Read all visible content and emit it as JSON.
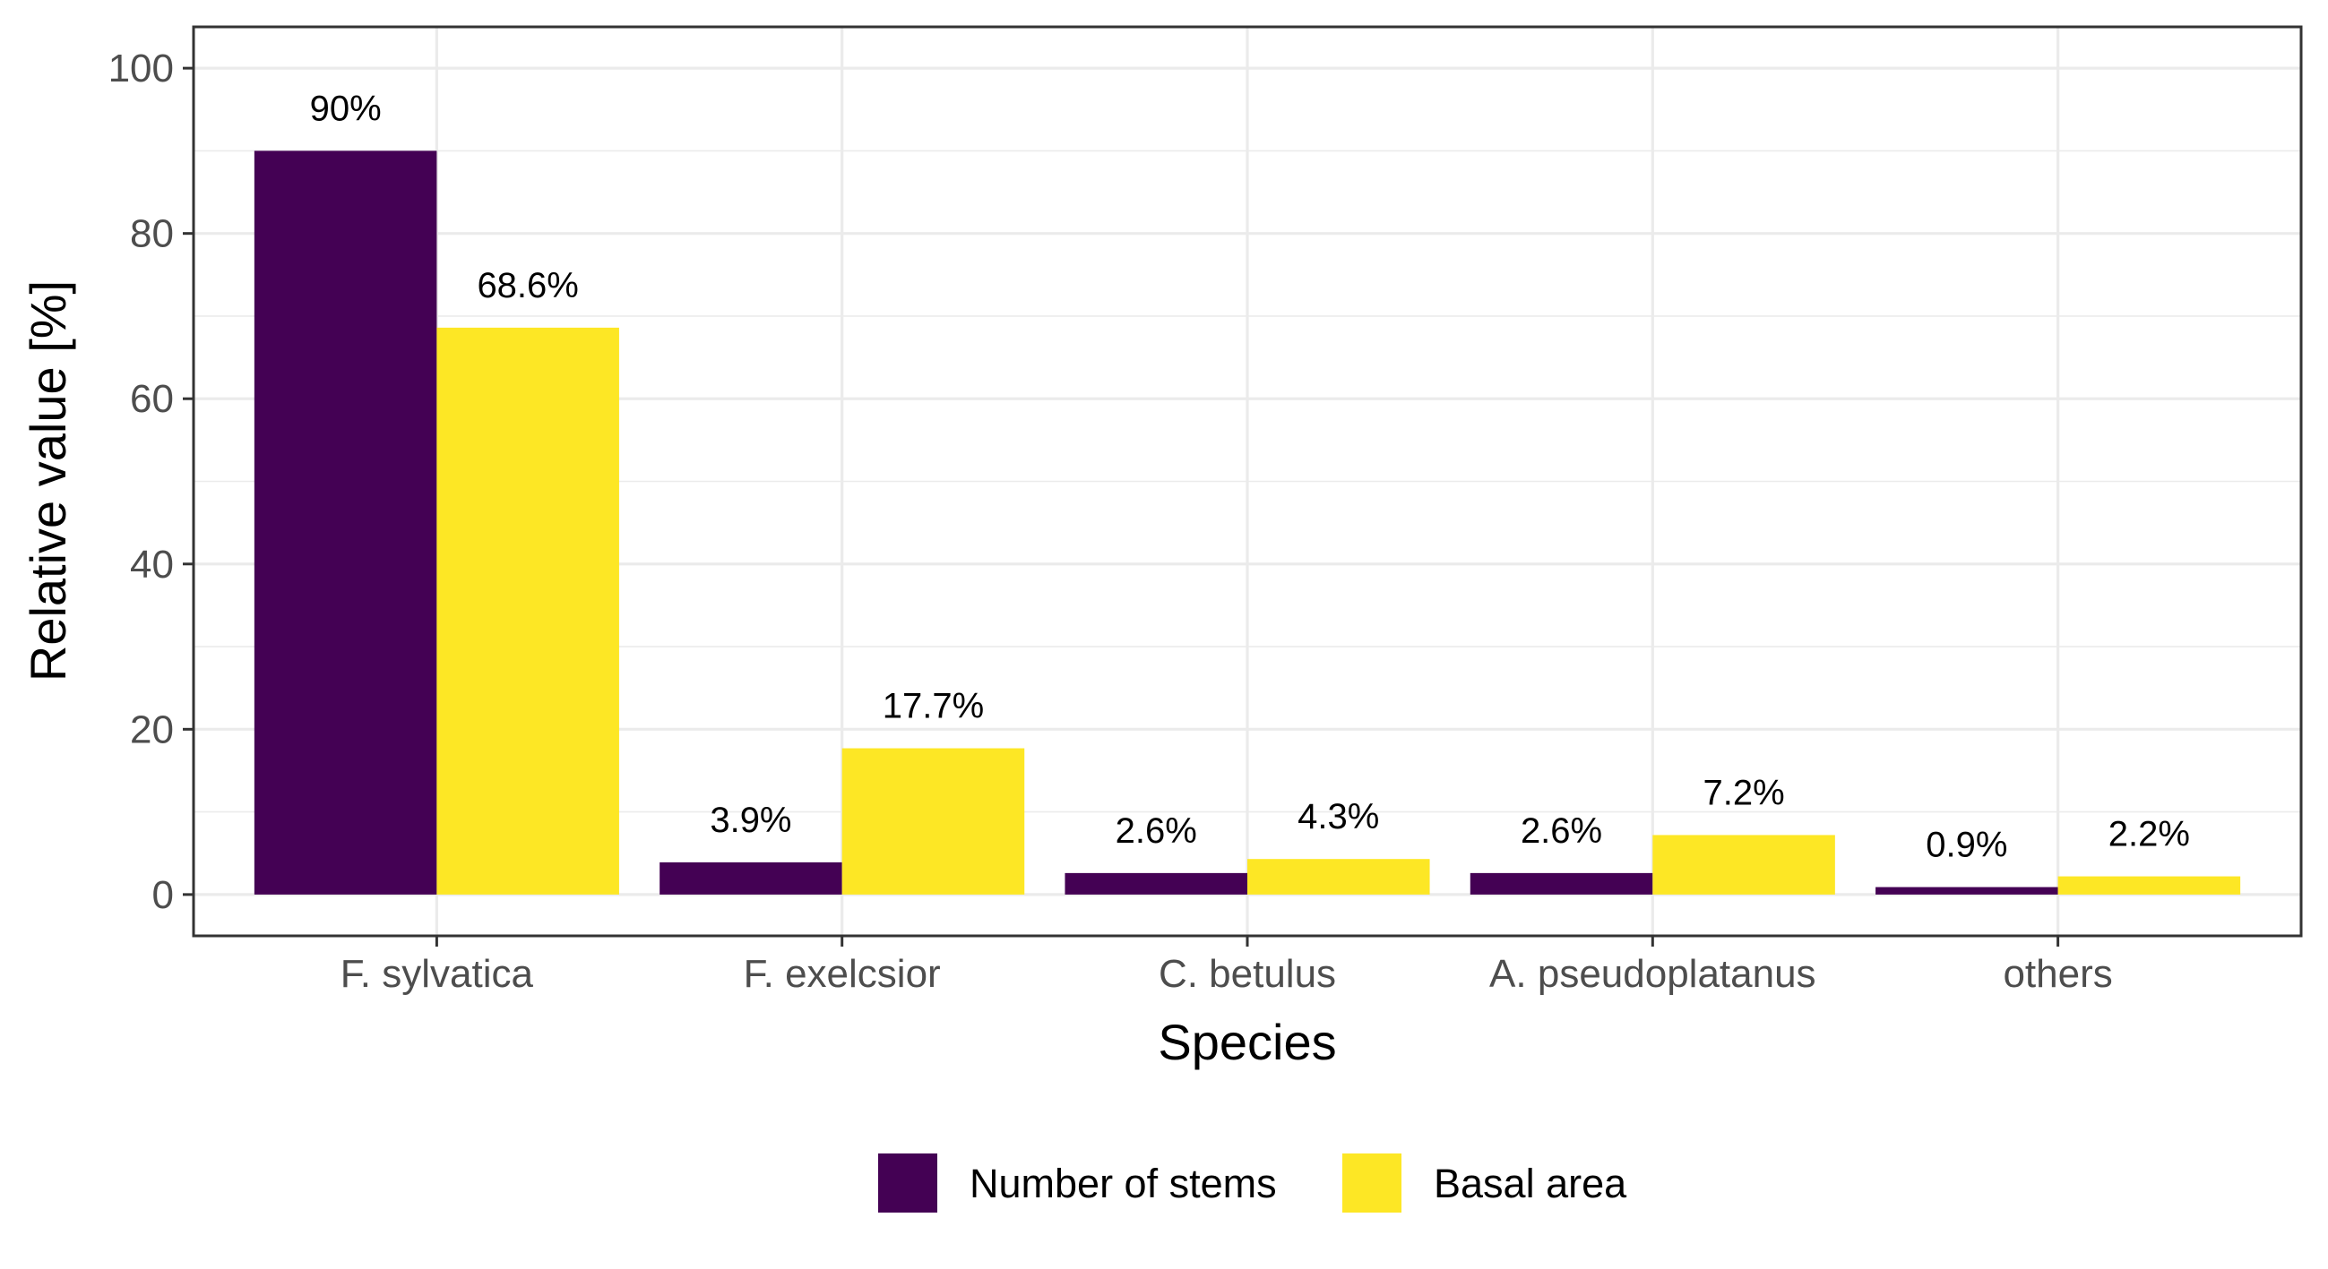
{
  "chart_data": {
    "type": "bar",
    "title": "",
    "xlabel": "Species",
    "ylabel": "Relative value [%]",
    "categories": [
      "F. sylvatica",
      "F. exelcsior",
      "C. betulus",
      "A. pseudoplatanus",
      "others"
    ],
    "series": [
      {
        "name": "Number of stems",
        "color": "#440154",
        "values": [
          90,
          3.9,
          2.6,
          2.6,
          0.9
        ],
        "labels": [
          "90%",
          "3.9%",
          "2.6%",
          "2.6%",
          "0.9%"
        ]
      },
      {
        "name": "Basal area",
        "color": "#FDE725",
        "values": [
          68.6,
          17.7,
          4.3,
          7.2,
          2.2
        ],
        "labels": [
          "68.6%",
          "17.7%",
          "4.3%",
          "7.2%",
          "2.2%"
        ]
      }
    ],
    "ylim": [
      -5,
      105
    ],
    "yticks": [
      0,
      20,
      40,
      60,
      80,
      100
    ],
    "ytick_labels": [
      "0",
      "20",
      "40",
      "60",
      "80",
      "100"
    ],
    "grid": true,
    "legend_position": "bottom"
  }
}
